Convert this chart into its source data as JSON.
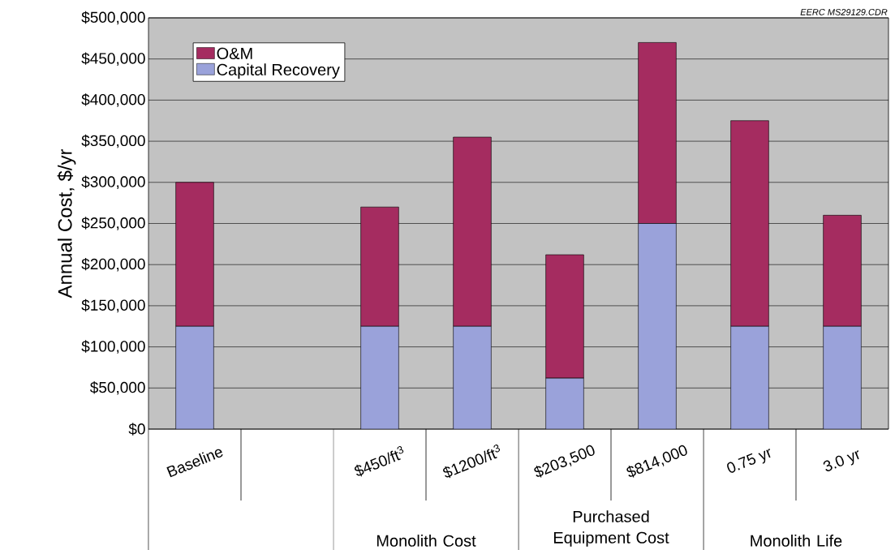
{
  "chart_data": {
    "type": "bar",
    "stacked": true,
    "ylabel": "Annual Cost, $/yr",
    "categories": [
      "Baseline",
      null,
      "$450/ft$^{3}$",
      "$1200/ft$^{3}$",
      "$203,500",
      "$814,000",
      "0.75 yr",
      "3.0 yr"
    ],
    "series": [
      {
        "name": "Capital Recovery",
        "color": "#9aa2da",
        "values": [
          125000,
          null,
          125000,
          125000,
          62000,
          250000,
          125000,
          125000
        ]
      },
      {
        "name": "O&M",
        "color": "#a52c60",
        "values": [
          175000,
          null,
          145000,
          230000,
          150000,
          220000,
          250000,
          135000
        ]
      }
    ],
    "ylim": [
      0,
      500000
    ],
    "yticks": [
      {
        "value": 0,
        "label": "$0"
      },
      {
        "value": 50000,
        "label": "$50,000"
      },
      {
        "value": 100000,
        "label": "$100,000"
      },
      {
        "value": 150000,
        "label": "$150,000"
      },
      {
        "value": 200000,
        "label": "$200,000"
      },
      {
        "value": 250000,
        "label": "$250,000"
      },
      {
        "value": 300000,
        "label": "$300,000"
      },
      {
        "value": 350000,
        "label": "$350,000"
      },
      {
        "value": 400000,
        "label": "$400,000"
      },
      {
        "value": 450000,
        "label": "$450,000"
      },
      {
        "value": 500000,
        "label": "$500,000"
      }
    ],
    "grid": "y",
    "legend": "top left",
    "annotations": [
      "EERC MS29129.CDR",
      "Monolith Cost",
      "Purchased Equipment Cost",
      "Monolith Life"
    ]
  }
}
